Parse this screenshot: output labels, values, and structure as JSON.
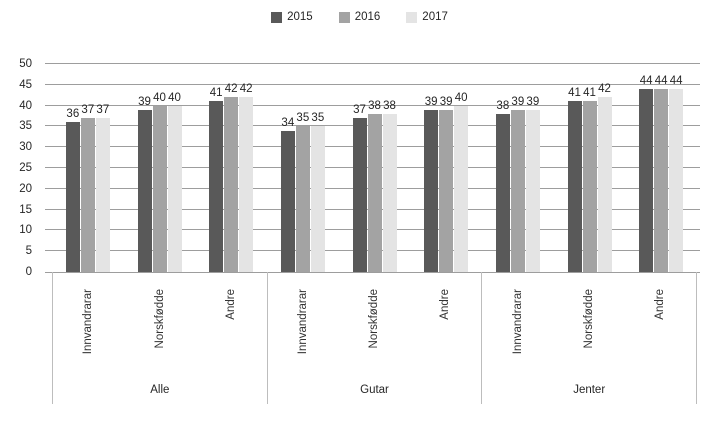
{
  "chart_data": {
    "type": "bar",
    "title": "",
    "xlabel": "",
    "ylabel": "",
    "ylim": [
      0,
      50
    ],
    "yticks": [
      0,
      5,
      10,
      15,
      20,
      25,
      30,
      35,
      40,
      45,
      50
    ],
    "grid": true,
    "legend_position": "top",
    "groups": [
      "Alle",
      "Gutar",
      "Jenter"
    ],
    "categories": [
      "Innvandrarar",
      "Norskfødde",
      "Andre"
    ],
    "series": [
      {
        "name": "2015",
        "color": "#595959",
        "values": {
          "Alle": [
            36,
            39,
            41
          ],
          "Gutar": [
            34,
            37,
            39
          ],
          "Jenter": [
            38,
            41,
            44
          ]
        }
      },
      {
        "name": "2016",
        "color": "#a3a3a3",
        "values": {
          "Alle": [
            37,
            40,
            42
          ],
          "Gutar": [
            35,
            38,
            39
          ],
          "Jenter": [
            39,
            41,
            44
          ]
        }
      },
      {
        "name": "2017",
        "color": "#e4e4e4",
        "values": {
          "Alle": [
            37,
            40,
            42
          ],
          "Gutar": [
            35,
            38,
            40
          ],
          "Jenter": [
            39,
            42,
            44
          ]
        }
      }
    ],
    "colors": {
      "gridline": "#9d9d9d",
      "axis_box_border": "#bdbdbd",
      "label_text": "#262626"
    }
  }
}
